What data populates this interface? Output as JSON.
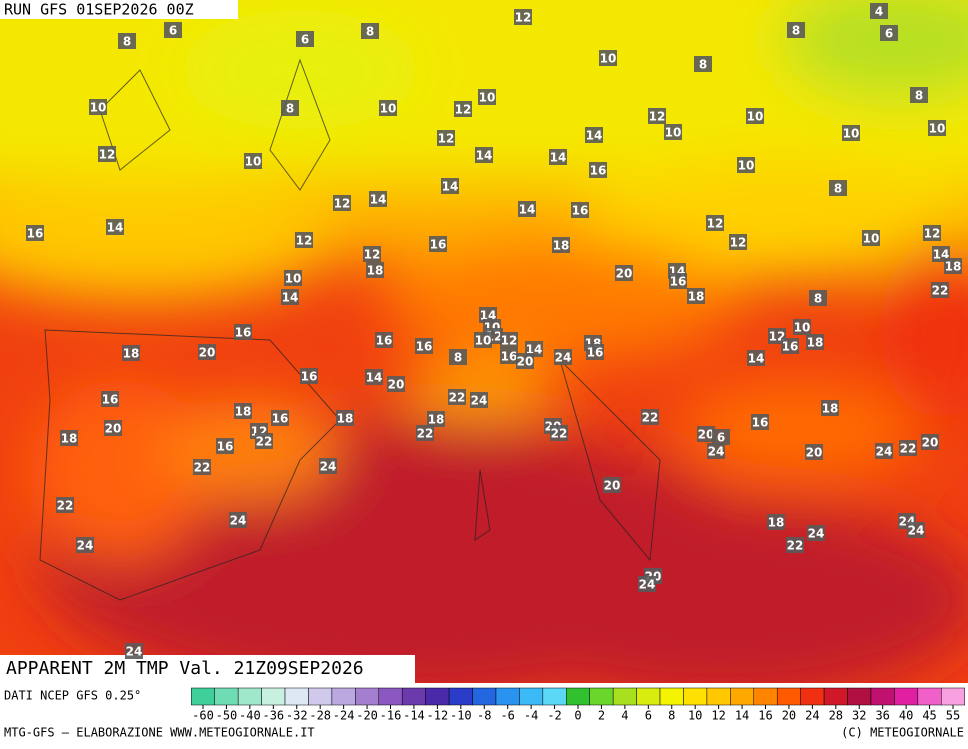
{
  "header": {
    "run": "RUN GFS 01SEP2026 00Z",
    "field": "APPARENT 2M TMP Val. 21Z09SEP2026"
  },
  "map": {
    "labels": [
      8,
      6,
      6,
      8,
      12,
      4,
      6,
      8,
      10,
      8,
      8,
      10,
      8,
      10,
      12,
      10,
      12,
      10,
      10,
      10,
      10,
      12,
      10,
      12,
      14,
      14,
      14,
      16,
      10,
      8,
      14,
      14,
      12,
      14,
      16,
      12,
      12,
      10,
      12,
      14,
      18,
      16,
      14,
      12,
      12,
      18,
      16,
      18,
      20,
      14,
      16,
      18,
      22,
      10,
      14,
      8,
      16,
      16,
      16,
      14,
      10,
      12,
      10,
      12,
      16,
      14,
      20,
      8,
      24,
      18,
      16,
      12,
      16,
      10,
      18,
      14,
      18,
      20,
      16,
      14,
      20,
      16,
      20,
      18,
      18,
      16,
      18,
      22,
      24,
      18,
      22,
      12,
      22,
      16,
      22,
      24,
      22,
      20,
      22,
      20,
      6,
      24,
      16,
      18,
      20,
      24,
      22,
      20,
      20,
      22,
      24,
      24,
      18,
      24,
      22,
      24,
      24,
      20,
      24,
      24
    ]
  },
  "legend": {
    "source": "DATI NCEP GFS 0.25°",
    "ticks": [
      -60,
      -50,
      -40,
      -36,
      -32,
      -28,
      -24,
      -20,
      -16,
      -14,
      -12,
      -10,
      -8,
      -6,
      -4,
      -2,
      0,
      2,
      4,
      6,
      8,
      10,
      12,
      14,
      16,
      20,
      24,
      28,
      32,
      36,
      40,
      45,
      55
    ],
    "colors": [
      "#3fcf9a",
      "#6fdcb4",
      "#9fe8cc",
      "#c8f0e0",
      "#dde8f4",
      "#cfcaec",
      "#bba8e0",
      "#a47fd0",
      "#8a58c0",
      "#6d3aae",
      "#4a2aa8",
      "#2a3cc8",
      "#2266e0",
      "#2a92ef",
      "#3cbaf6",
      "#5ad8f6",
      "#30c030",
      "#6ad52a",
      "#a8e020",
      "#d8ec10",
      "#f4f400",
      "#ffe000",
      "#ffc800",
      "#ffa800",
      "#ff8400",
      "#ff5a00",
      "#f03010",
      "#d01828",
      "#b01040",
      "#c01070",
      "#e020a0",
      "#f060c8",
      "#f8a0e0"
    ]
  },
  "footer": {
    "credit": "MTG-GFS — ELABORAZIONE WWW.METEOGIORNALE.IT",
    "copyright": "(C) METEOGIORNALE"
  }
}
